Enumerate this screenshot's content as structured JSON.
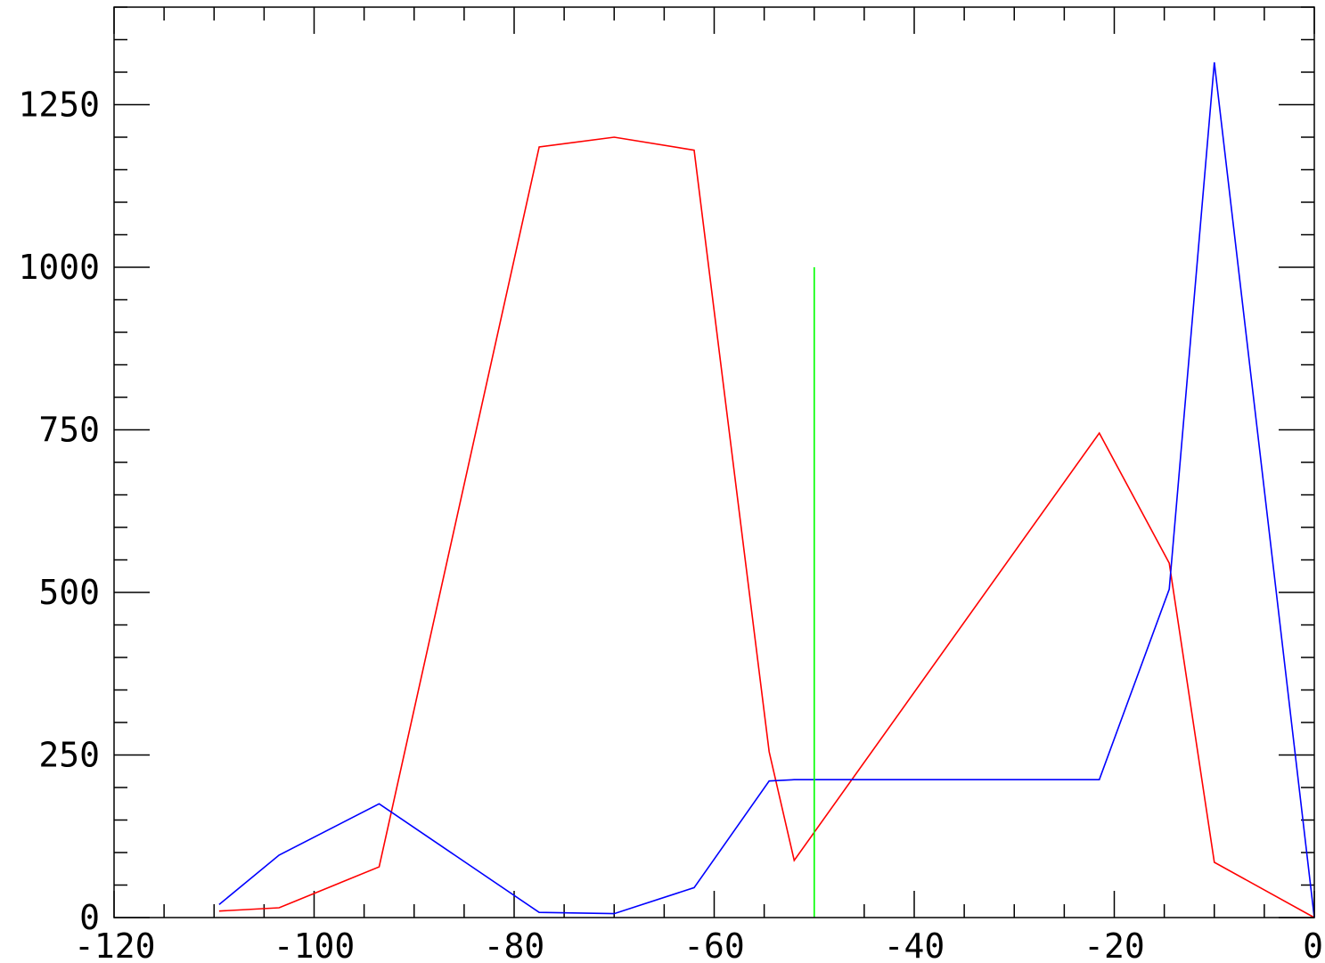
{
  "chart_data": {
    "type": "line",
    "title": "",
    "xlabel": "",
    "ylabel": "",
    "xlim": [
      -120,
      0
    ],
    "ylim": [
      0,
      1400
    ],
    "x_ticks": [
      -120,
      -100,
      -80,
      -60,
      -40,
      -20,
      0
    ],
    "x_tick_labels": [
      "-120",
      "-100",
      "-80",
      "-60",
      "-40",
      "-20",
      "0"
    ],
    "y_ticks": [
      0,
      250,
      500,
      750,
      1000,
      1250
    ],
    "y_tick_labels": [
      "0",
      "250",
      "500",
      "750",
      "1000",
      "1250"
    ],
    "grid": false,
    "series": [
      {
        "color": "#ff0000",
        "x": [
          -109.5,
          -103.5,
          -93.5,
          -77.5,
          -70,
          -62,
          -54.5,
          -52,
          -21.5,
          -14.5,
          -10,
          0
        ],
        "y": [
          10,
          15,
          78,
          1185,
          1200,
          1180,
          255,
          88,
          745,
          545,
          85,
          0
        ]
      },
      {
        "color": "#0000ff",
        "x": [
          -109.5,
          -103.5,
          -93.5,
          -77.5,
          -70,
          -62,
          -54.5,
          -52,
          -21.5,
          -14.5,
          -10,
          0
        ],
        "y": [
          20,
          96,
          175,
          8,
          6,
          46,
          210,
          212,
          212,
          505,
          1315,
          0
        ]
      },
      {
        "color": "#00ff00",
        "x": [
          -50,
          -50
        ],
        "y": [
          0,
          1000
        ]
      }
    ]
  }
}
